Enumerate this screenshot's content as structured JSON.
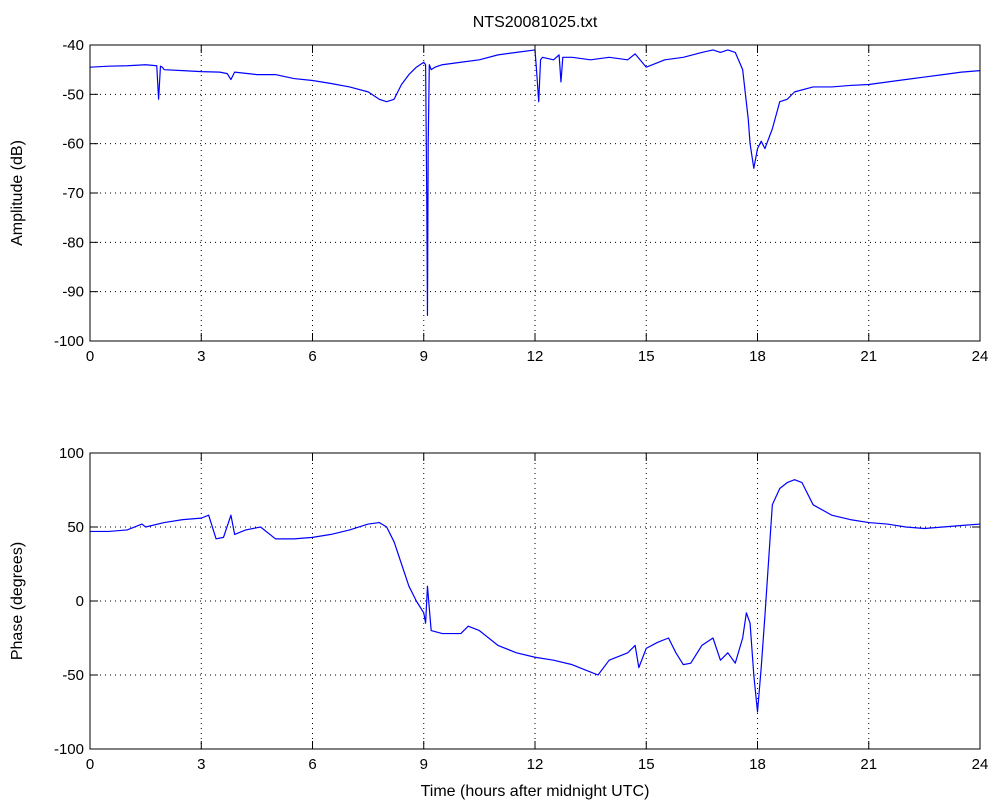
{
  "figure": {
    "title": "NTS20081025.txt"
  },
  "colors": {
    "series": "#0000ff",
    "axes": "#000000",
    "background": "#ffffff"
  },
  "chart_data": [
    {
      "type": "line",
      "title": "NTS20081025.txt",
      "xlabel": "",
      "ylabel": "Amplitude (dB)",
      "xlim": [
        0,
        24
      ],
      "ylim": [
        -100,
        -40
      ],
      "xticks": [
        0,
        3,
        6,
        9,
        12,
        15,
        18,
        21,
        24
      ],
      "yticks": [
        -100,
        -90,
        -80,
        -70,
        -60,
        -50,
        -40
      ],
      "grid": true,
      "series": [
        {
          "x": [
            0,
            0.5,
            1,
            1.5,
            1.8,
            1.85,
            1.9,
            1.95,
            2.0,
            2.5,
            3.0,
            3.5,
            3.7,
            3.8,
            3.9,
            4.5,
            5.0,
            5.5,
            6.0,
            6.5,
            7.0,
            7.5,
            7.8,
            8.0,
            8.2,
            8.4,
            8.6,
            8.8,
            9.0,
            9.05,
            9.08,
            9.1,
            9.12,
            9.15,
            9.2,
            9.3,
            9.5,
            10.0,
            10.5,
            11.0,
            11.5,
            12.0,
            12.05,
            12.1,
            12.15,
            12.2,
            12.5,
            12.65,
            12.7,
            12.75,
            13.0,
            13.5,
            14.0,
            14.5,
            14.7,
            15.0,
            15.5,
            16.0,
            16.5,
            16.8,
            17.0,
            17.2,
            17.4,
            17.6,
            17.75,
            17.8,
            17.9,
            18.0,
            18.1,
            18.2,
            18.4,
            18.6,
            18.8,
            19.0,
            19.5,
            20.0,
            20.5,
            21.0,
            21.5,
            22.0,
            22.5,
            23.0,
            23.5,
            24.0
          ],
          "y": [
            -44.5,
            -44.3,
            -44.2,
            -44.0,
            -44.2,
            -51.0,
            -44.3,
            -44.5,
            -45.0,
            -45.2,
            -45.4,
            -45.5,
            -45.8,
            -47.0,
            -45.5,
            -46.0,
            -46.0,
            -46.8,
            -47.2,
            -47.8,
            -48.5,
            -49.5,
            -51.0,
            -51.5,
            -51.0,
            -48.0,
            -46.0,
            -44.5,
            -43.5,
            -44.0,
            -70.0,
            -94.8,
            -60.0,
            -44.0,
            -45.0,
            -44.5,
            -44.0,
            -43.5,
            -43.0,
            -42.0,
            -41.5,
            -41.0,
            -46.0,
            -51.5,
            -43.0,
            -42.5,
            -43.0,
            -42.0,
            -47.5,
            -42.5,
            -42.5,
            -43.0,
            -42.5,
            -43.0,
            -41.8,
            -44.5,
            -43.0,
            -42.5,
            -41.5,
            -41.0,
            -41.5,
            -41.0,
            -41.5,
            -45.0,
            -55.0,
            -60.0,
            -65.0,
            -61.0,
            -59.5,
            -61.0,
            -57.0,
            -51.5,
            -51.0,
            -49.5,
            -48.5,
            -48.5,
            -48.2,
            -48.0,
            -47.5,
            -47.0,
            -46.5,
            -46.0,
            -45.5,
            -45.2
          ]
        }
      ]
    },
    {
      "type": "line",
      "title": "",
      "xlabel": "Time (hours after midnight UTC)",
      "ylabel": "Phase (degrees)",
      "xlim": [
        0,
        24
      ],
      "ylim": [
        -100,
        100
      ],
      "xticks": [
        0,
        3,
        6,
        9,
        12,
        15,
        18,
        21,
        24
      ],
      "yticks": [
        -100,
        -50,
        0,
        50,
        100
      ],
      "grid": true,
      "series": [
        {
          "x": [
            0,
            0.5,
            1,
            1.4,
            1.5,
            2.0,
            2.5,
            3.0,
            3.2,
            3.4,
            3.6,
            3.8,
            3.9,
            4.2,
            4.6,
            5.0,
            5.5,
            6.0,
            6.5,
            7.0,
            7.5,
            7.8,
            8.0,
            8.2,
            8.4,
            8.6,
            8.8,
            9.0,
            9.05,
            9.1,
            9.2,
            9.5,
            10.0,
            10.2,
            10.5,
            11.0,
            11.5,
            12.0,
            12.5,
            13.0,
            13.5,
            13.7,
            14.0,
            14.5,
            14.7,
            14.8,
            15.0,
            15.3,
            15.6,
            15.8,
            16.0,
            16.2,
            16.5,
            16.8,
            17.0,
            17.2,
            17.4,
            17.6,
            17.7,
            17.8,
            17.9,
            18.0,
            18.1,
            18.2,
            18.4,
            18.6,
            18.8,
            19.0,
            19.2,
            19.5,
            20.0,
            20.5,
            21.0,
            21.5,
            22.0,
            22.5,
            23.0,
            23.5,
            24.0
          ],
          "y": [
            47,
            47,
            48,
            52,
            50,
            53,
            55,
            56,
            58,
            42,
            43,
            58,
            45,
            48,
            50,
            42,
            42,
            43,
            45,
            48,
            52,
            53,
            50,
            40,
            25,
            10,
            0,
            -8,
            -15,
            10,
            -20,
            -22,
            -22,
            -17,
            -20,
            -30,
            -35,
            -38,
            -40,
            -43,
            -48,
            -50,
            -40,
            -35,
            -30,
            -45,
            -32,
            -28,
            -25,
            -35,
            -43,
            -42,
            -30,
            -25,
            -40,
            -35,
            -42,
            -25,
            -8,
            -15,
            -50,
            -75,
            -45,
            -10,
            65,
            76,
            80,
            82,
            80,
            65,
            58,
            55,
            53,
            52,
            50,
            49,
            50,
            51,
            52
          ]
        }
      ]
    }
  ]
}
